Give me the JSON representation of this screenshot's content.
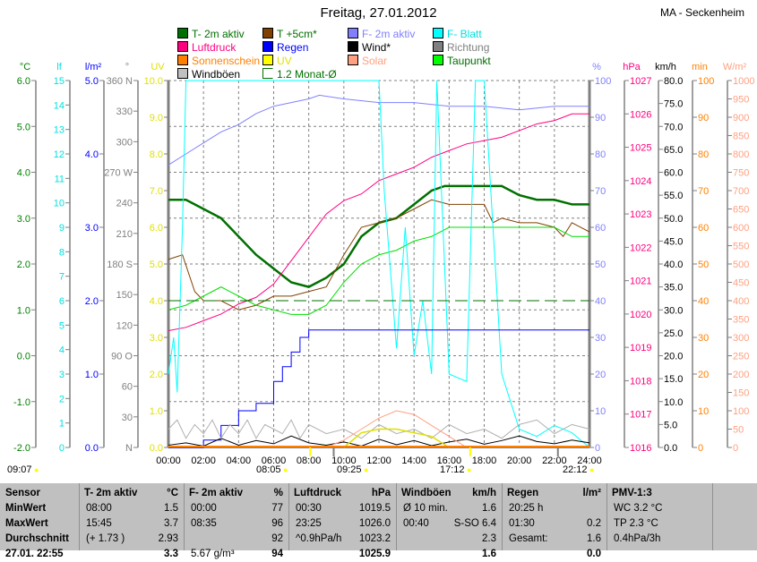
{
  "title": "Freitag, 27.01.2012",
  "station": "MA - Seckenheim",
  "legend": [
    {
      "label": "T- 2m aktiv",
      "color": "#007000",
      "text": "#007000"
    },
    {
      "label": "T +5cm*",
      "color": "#804000",
      "text": "#007000"
    },
    {
      "label": "F- 2m aktiv",
      "color": "#8080ff",
      "text": "#8080ff"
    },
    {
      "label": "F- Blatt",
      "color": "#00ffff",
      "text": "#00e0e0"
    },
    {
      "label": "Luftdruck",
      "color": "#ff0080",
      "text": "#ff0080"
    },
    {
      "label": "Regen",
      "color": "#0000ff",
      "text": "#0000ff"
    },
    {
      "label": "Wind*",
      "color": "#000000",
      "text": "#000000"
    },
    {
      "label": "Richtung",
      "color": "#808080",
      "text": "#808080"
    },
    {
      "label": "Sonnenschein",
      "color": "#ff8000",
      "text": "#ff8000"
    },
    {
      "label": "UV",
      "color": "#ffff00",
      "text": "#e0e000"
    },
    {
      "label": "Solar",
      "color": "#ffa080",
      "text": "#ffa080"
    },
    {
      "label": "Taupunkt",
      "color": "#00ff00",
      "text": "#007000"
    },
    {
      "label": "Windböen",
      "color": "#c0c0c0",
      "text": "#000000"
    },
    {
      "label": "1.2 Monat-Ø",
      "color": "#ffffff",
      "text": "#007000"
    }
  ],
  "axes": {
    "left": [
      {
        "unit": "°C",
        "color": "#008000",
        "min": -2,
        "max": 6,
        "step": 1,
        "decimals": 1
      },
      {
        "unit": "lf",
        "color": "#00e0e0",
        "min": 0,
        "max": 15,
        "step": 1,
        "decimals": 0
      },
      {
        "unit": "l/m²",
        "color": "#0000ff",
        "min": 0,
        "max": 5,
        "step": 1,
        "decimals": 1
      },
      {
        "unit": "°",
        "color": "#808080",
        "min": 0,
        "max": 360,
        "step": 30,
        "decimals": 0,
        "named": {
          "0": "N",
          "90": "O",
          "180": "S",
          "270": "W",
          "360": "N"
        }
      },
      {
        "unit": "UV",
        "color": "#e0e000",
        "min": 0,
        "max": 10,
        "step": 1,
        "decimals": 1
      }
    ],
    "right": [
      {
        "unit": "%",
        "color": "#8080ff",
        "min": 0,
        "max": 100,
        "step": 10,
        "decimals": 0
      },
      {
        "unit": "hPa",
        "color": "#ff0080",
        "min": 1016,
        "max": 1027,
        "step": 1,
        "decimals": 0
      },
      {
        "unit": "km/h",
        "color": "#000000",
        "min": 0,
        "max": 80,
        "step": 5,
        "decimals": 1
      },
      {
        "unit": "min",
        "color": "#ff8000",
        "min": 0,
        "max": 100,
        "step": 10,
        "decimals": 0
      },
      {
        "unit": "W/m²",
        "color": "#ffa080",
        "min": 0,
        "max": 1000,
        "step": 50,
        "decimals": 0
      }
    ]
  },
  "chart_data": {
    "type": "line",
    "title": "Freitag, 27.01.2012",
    "x_ticks": [
      "00:00",
      "02:00",
      "04:00",
      "06:00",
      "08:00",
      "10:00",
      "12:00",
      "14:00",
      "16:00",
      "18:00",
      "20:00",
      "22:00",
      "24:00"
    ],
    "xlim": [
      0,
      24
    ],
    "grid": true,
    "series": [
      {
        "name": "T- 2m aktiv",
        "axis": "°C",
        "color": "#007000",
        "width": 2.5,
        "x": [
          0,
          1,
          2,
          3,
          4,
          5,
          6,
          7,
          8,
          9,
          10,
          11,
          12,
          13,
          14,
          15,
          15.75,
          17,
          19,
          20,
          21,
          22,
          23,
          24
        ],
        "y": [
          3.4,
          3.4,
          3.2,
          3.0,
          2.6,
          2.2,
          1.9,
          1.6,
          1.5,
          1.7,
          2.0,
          2.6,
          2.9,
          3.0,
          3.3,
          3.6,
          3.7,
          3.7,
          3.7,
          3.5,
          3.4,
          3.4,
          3.3,
          3.3
        ]
      },
      {
        "name": "T +5cm*",
        "axis": "°C",
        "color": "#804000",
        "width": 1,
        "x": [
          0,
          0.8,
          1.5,
          2,
          3,
          4,
          5,
          6,
          7,
          8,
          9,
          10,
          11,
          12,
          13,
          14,
          15,
          16,
          17,
          18,
          18.5,
          19,
          20,
          21,
          22,
          22.5,
          23,
          24
        ],
        "y": [
          2.1,
          2.2,
          1.4,
          1.2,
          1.2,
          1.0,
          1.1,
          1.3,
          1.3,
          1.4,
          1.5,
          2.2,
          2.8,
          2.9,
          3.0,
          3.2,
          3.4,
          3.3,
          3.3,
          3.3,
          2.9,
          3.0,
          2.9,
          2.9,
          2.8,
          2.6,
          2.9,
          2.7
        ]
      },
      {
        "name": "Taupunkt",
        "axis": "°C",
        "color": "#00e000",
        "width": 1,
        "x": [
          0,
          1,
          2,
          3,
          4,
          5,
          6,
          7,
          8,
          9,
          10,
          11,
          12,
          13,
          14,
          15,
          16,
          17,
          18,
          19,
          20,
          21,
          22,
          23,
          24
        ],
        "y": [
          1.0,
          1.1,
          1.3,
          1.5,
          1.3,
          1.1,
          1.0,
          0.9,
          0.9,
          1.1,
          1.6,
          2.0,
          2.2,
          2.3,
          2.5,
          2.6,
          2.8,
          2.8,
          2.8,
          2.8,
          2.8,
          2.8,
          2.8,
          2.6,
          2.6
        ]
      },
      {
        "name": "Luftdruck",
        "axis": "hPa",
        "color": "#ff0080",
        "width": 1,
        "x": [
          0,
          1,
          2,
          3,
          4,
          5,
          6,
          7,
          8,
          9,
          10,
          11,
          12,
          13,
          14,
          15,
          16,
          17,
          18,
          19,
          20,
          21,
          22,
          23,
          24
        ],
        "y": [
          1019.5,
          1019.6,
          1019.8,
          1020.0,
          1020.3,
          1020.5,
          1020.9,
          1021.6,
          1022.3,
          1023.0,
          1023.4,
          1023.6,
          1024.0,
          1024.2,
          1024.4,
          1024.7,
          1024.9,
          1025.1,
          1025.2,
          1025.3,
          1025.5,
          1025.7,
          1025.8,
          1026.0,
          1026.0
        ]
      },
      {
        "name": "F- 2m aktiv",
        "axis": "%",
        "color": "#8080ff",
        "width": 1,
        "x": [
          0,
          1,
          2,
          3,
          4,
          5,
          6,
          7,
          8,
          8.6,
          10,
          12,
          14,
          16,
          18,
          20,
          22,
          24
        ],
        "y": [
          77,
          80,
          83,
          86,
          88,
          91,
          93,
          94,
          95,
          96,
          95,
          94,
          94,
          93,
          93,
          92,
          93,
          93
        ]
      },
      {
        "name": "F- Blatt",
        "axis": "%",
        "color": "#00ffff",
        "width": 1,
        "x": [
          0,
          0.3,
          0.5,
          0.8,
          1.0,
          1.2,
          12.0,
          12.3,
          13.0,
          13.5,
          14.0,
          14.5,
          15.0,
          15.3,
          16.0,
          17.0,
          17.5,
          18.0,
          18.5,
          19.0,
          20.0,
          21.0,
          22.0,
          23.0,
          24.0
        ],
        "y": [
          20,
          30,
          15,
          60,
          100,
          100,
          100,
          70,
          27,
          60,
          25,
          40,
          20,
          100,
          20,
          18,
          100,
          100,
          60,
          20,
          5,
          3,
          6,
          4,
          0
        ]
      },
      {
        "name": "Regen",
        "axis": "l/m²",
        "color": "#0000ff",
        "width": 1,
        "step": true,
        "x": [
          0,
          2,
          3,
          4,
          5,
          6,
          6.5,
          7,
          7.5,
          8,
          24
        ],
        "y": [
          0,
          0.1,
          0.3,
          0.5,
          0.6,
          0.9,
          1.1,
          1.3,
          1.5,
          1.6,
          1.6
        ]
      },
      {
        "name": "Wind*",
        "axis": "km/h",
        "color": "#000000",
        "width": 1,
        "x": [
          0,
          1,
          2,
          3,
          4,
          5,
          6,
          7,
          8,
          9,
          10,
          11,
          12,
          13,
          14,
          15,
          16,
          17,
          18,
          19,
          20,
          21,
          22,
          23,
          24
        ],
        "y": [
          0.5,
          1,
          0.3,
          2,
          0.5,
          1.5,
          0.8,
          2.5,
          1,
          0.5,
          1.2,
          0.3,
          1.8,
          0.6,
          1.5,
          0.4,
          1.2,
          1.8,
          0.7,
          1.5,
          2.5,
          1.3,
          0.8,
          1.6,
          1.0
        ]
      },
      {
        "name": "Windböen",
        "axis": "km/h",
        "color": "#b0b0b0",
        "width": 1,
        "x": [
          0,
          0.5,
          1,
          1.5,
          2,
          2.5,
          3,
          3.5,
          4,
          4.5,
          5,
          5.5,
          6,
          6.5,
          7,
          7.5,
          8,
          9,
          10,
          11,
          12,
          13,
          14,
          15,
          16,
          17,
          18,
          19,
          20,
          21,
          22,
          23,
          24
        ],
        "y": [
          4,
          6,
          2,
          5,
          3,
          6,
          2,
          5,
          3,
          6,
          2,
          5,
          4,
          3,
          6,
          2,
          5,
          3,
          4,
          2,
          5,
          3,
          4,
          2,
          5,
          3,
          4,
          2,
          5,
          6,
          3,
          5,
          4
        ]
      },
      {
        "name": "Solar",
        "axis": "W/m²",
        "color": "#ffa080",
        "width": 1,
        "x": [
          9,
          10,
          11,
          12,
          13,
          14,
          15,
          16,
          17
        ],
        "y": [
          0,
          20,
          50,
          80,
          100,
          90,
          60,
          30,
          0
        ]
      },
      {
        "name": "UV",
        "axis": "UV",
        "color": "#e0e000",
        "width": 1.5,
        "x": [
          10,
          11,
          12,
          13,
          14,
          15,
          16
        ],
        "y": [
          0,
          0.4,
          0.5,
          0.5,
          0.4,
          0.3,
          0
        ]
      },
      {
        "name": "1.2 Monat-Ø",
        "axis": "°C",
        "color": "#007000",
        "width": 1,
        "dashed": true,
        "x": [
          0,
          24
        ],
        "y": [
          1.2,
          1.2
        ]
      }
    ]
  },
  "sun": [
    {
      "label": "09:07",
      "color": "#ffff00"
    },
    {
      "label": "08:05",
      "color": "#ffff00"
    },
    {
      "label": "09:25",
      "color": "#ffff00"
    },
    {
      "label": "17:12",
      "color": "#ffff00"
    },
    {
      "label": "22:12",
      "color": "#ffff00"
    }
  ],
  "stats": {
    "headers": [
      {
        "name": "Sensor",
        "unit": ""
      },
      {
        "name": "T- 2m aktiv",
        "unit": "°C"
      },
      {
        "name": "F- 2m aktiv",
        "unit": "%"
      },
      {
        "name": "Luftdruck",
        "unit": "hPa"
      },
      {
        "name": "Windböen",
        "unit": "km/h"
      },
      {
        "name": "Regen",
        "unit": "l/m²"
      },
      {
        "name": "PMV-1:3",
        "unit": ""
      }
    ],
    "rows": [
      {
        "label": "MinWert",
        "cells": [
          [
            "08:00",
            "1.5"
          ],
          [
            "00:00",
            "77"
          ],
          [
            "00:30",
            "1019.5"
          ],
          [
            "Ø 10 min.",
            "1.6"
          ],
          [
            "20:25 h",
            ""
          ],
          [
            "WC 3.2 °C",
            ""
          ]
        ]
      },
      {
        "label": "MaxWert",
        "cells": [
          [
            "15:45",
            "3.7"
          ],
          [
            "08:35",
            "96"
          ],
          [
            "23:25",
            "1026.0"
          ],
          [
            "00:40",
            "S-SO 6.4"
          ],
          [
            "01:30",
            "0.2"
          ],
          [
            "TP 2.3 °C",
            ""
          ]
        ]
      },
      {
        "label": "Durchschnitt",
        "cells": [
          [
            "(+ 1.73 )",
            "2.93"
          ],
          [
            "",
            "92"
          ],
          [
            "^0.9hPa/h",
            "1023.2"
          ],
          [
            "",
            "2.3"
          ],
          [
            "Gesamt:",
            "1.6"
          ],
          [
            "0.4hPa/3h",
            ""
          ]
        ]
      },
      {
        "label": "27.01. 22:55",
        "cells": [
          [
            "",
            "3.3"
          ],
          [
            "5.67 g/m³",
            "94"
          ],
          [
            "",
            "1025.9"
          ],
          [
            "",
            "1.6"
          ],
          [
            "",
            "0.0"
          ],
          [
            "",
            ""
          ]
        ]
      }
    ]
  }
}
